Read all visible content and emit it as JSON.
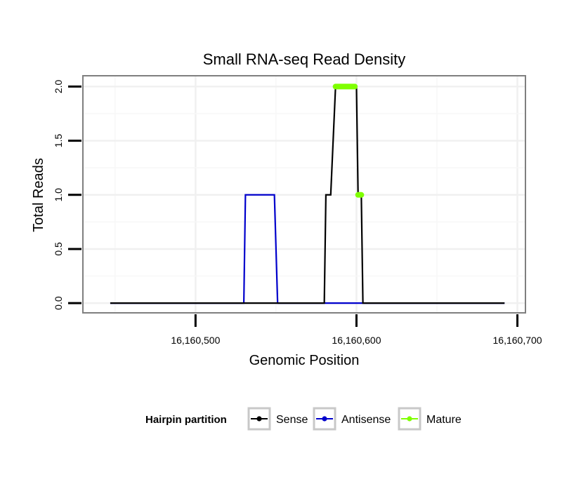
{
  "chart_data": {
    "type": "line",
    "title": "Small RNA-seq Read Density",
    "xlabel": "Genomic Position",
    "ylabel": "Total Reads",
    "xlim": [
      16160430,
      16160705
    ],
    "ylim": [
      -0.09,
      2.1
    ],
    "x_ticks": [
      16160500,
      16160600,
      16160700
    ],
    "x_tick_labels": [
      "16,160,500",
      "16,160,600",
      "16,160,700"
    ],
    "y_ticks": [
      0,
      0.5,
      1,
      1.5,
      2
    ],
    "y_tick_labels": [
      "0.0",
      "0.5",
      "1.0",
      "1.5",
      "2.0"
    ],
    "grid": true,
    "legend_position": "bottom",
    "legend_title": "Hairpin partition",
    "series": [
      {
        "name": "Sense",
        "color": "#000000",
        "x": [
          16160447,
          16160580,
          16160581,
          16160583,
          16160584,
          16160587,
          16160600,
          16160601,
          16160603,
          16160604,
          16160692
        ],
        "y": [
          0,
          0,
          1,
          1,
          1,
          2,
          2,
          1,
          1,
          0,
          0
        ]
      },
      {
        "name": "Antisense",
        "color": "#0000cc",
        "x": [
          16160447,
          16160530,
          16160531,
          16160549,
          16160551,
          16160692
        ],
        "y": [
          0,
          0,
          1,
          1,
          0,
          0
        ]
      },
      {
        "name": "Mature",
        "color": "#7fff00",
        "segments": [
          {
            "x": [
              16160587,
              16160599
            ],
            "y": [
              2,
              2
            ]
          },
          {
            "x": [
              16160601,
              16160603
            ],
            "y": [
              1,
              1
            ]
          }
        ]
      }
    ]
  }
}
